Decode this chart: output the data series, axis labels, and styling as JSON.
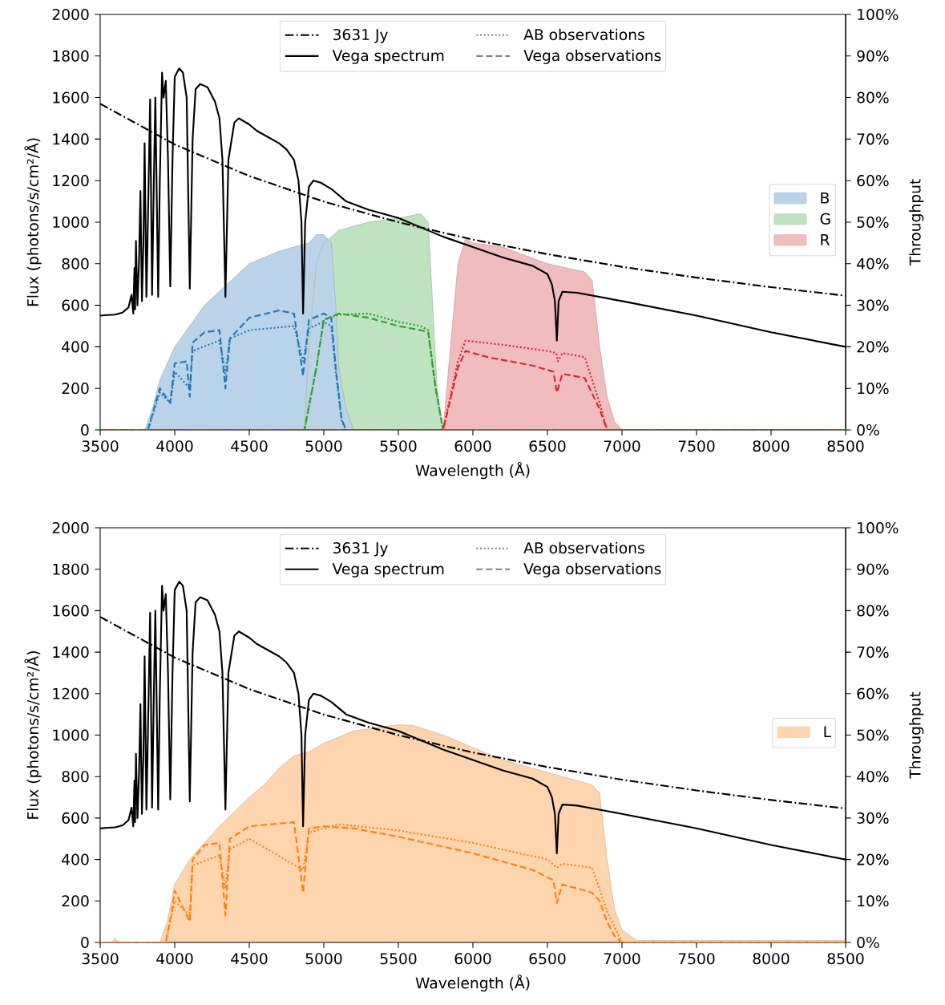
{
  "chart_data": [
    {
      "type": "line",
      "xlabel": "Wavelength (Å)",
      "ylabel": "Flux (photons/s/cm²/Å)",
      "y2label": "Throughput",
      "xlim": [
        3500,
        8500
      ],
      "xticks": [
        3500,
        4000,
        4500,
        5000,
        5500,
        6000,
        6500,
        7000,
        7500,
        8000,
        8500
      ],
      "ylim": [
        0,
        2000
      ],
      "yticks": [
        0,
        200,
        400,
        600,
        800,
        1000,
        1200,
        1400,
        1600,
        1800,
        2000
      ],
      "y2lim": [
        0,
        100
      ],
      "y2ticks": [
        {
          "value": 0,
          "label": "0%"
        },
        {
          "value": 10,
          "label": "10%"
        },
        {
          "value": 20,
          "label": "20%"
        },
        {
          "value": 30,
          "label": "30%"
        },
        {
          "value": 40,
          "label": "40%"
        },
        {
          "value": 50,
          "label": "50%"
        },
        {
          "value": 60,
          "label": "60%"
        },
        {
          "value": 70,
          "label": "70%"
        },
        {
          "value": 80,
          "label": "80%"
        },
        {
          "value": 90,
          "label": "90%"
        },
        {
          "value": 100,
          "label": "100%"
        }
      ],
      "legend": "top",
      "series": [
        {
          "name": "R",
          "type": "area",
          "axis": "y2",
          "color": "#f0bcbd",
          "x": [
            5800,
            5850,
            5900,
            5950,
            6000,
            6200,
            6500,
            6750,
            6800,
            6850,
            6900,
            6950,
            7000
          ],
          "values": [
            0,
            20,
            40,
            46,
            45,
            44,
            40,
            38,
            36,
            20,
            8,
            2,
            0
          ]
        },
        {
          "name": "G",
          "type": "area",
          "axis": "y2",
          "color": "#bfe2bf",
          "x": [
            4870,
            4900,
            4950,
            5000,
            5100,
            5300,
            5500,
            5650,
            5700,
            5730,
            5760,
            5800
          ],
          "values": [
            0,
            20,
            40,
            45,
            48,
            50,
            51,
            52,
            50,
            30,
            10,
            0
          ]
        },
        {
          "name": "B",
          "type": "area",
          "axis": "y2",
          "color": "#bad3e8",
          "x": [
            3800,
            3850,
            3900,
            4000,
            4200,
            4500,
            4700,
            4800,
            4900,
            4950,
            5000,
            5050,
            5080,
            5100,
            5150,
            5200
          ],
          "values": [
            0,
            5,
            12,
            20,
            30,
            40,
            43,
            44,
            45,
            47,
            47,
            45,
            30,
            15,
            5,
            0
          ]
        },
        {
          "name": "3631 Jy",
          "line_style": "dashdot",
          "color": "#000000",
          "x": [
            3500,
            4000,
            4500,
            5000,
            5500,
            6000,
            6500,
            7000,
            7500,
            8000,
            8500
          ],
          "values": [
            1570,
            1374,
            1222,
            1099,
            1000,
            916,
            846,
            785,
            733,
            687,
            646
          ]
        },
        {
          "name": "Vega spectrum",
          "line_style": "solid",
          "color": "#000000",
          "x": [
            3500,
            3550,
            3600,
            3650,
            3690,
            3710,
            3722,
            3730,
            3734,
            3740,
            3750,
            3760,
            3770,
            3780,
            3790,
            3798,
            3810,
            3820,
            3835,
            3848,
            3860,
            3870,
            3889,
            3900,
            3915,
            3925,
            3940,
            3955,
            3970,
            3985,
            4000,
            4030,
            4055,
            4080,
            4101,
            4120,
            4140,
            4170,
            4220,
            4270,
            4300,
            4320,
            4340,
            4360,
            4400,
            4430,
            4500,
            4550,
            4600,
            4700,
            4750,
            4800,
            4830,
            4850,
            4861,
            4875,
            4900,
            4930,
            4980,
            5050,
            5150,
            5300,
            5500,
            5800,
            6000,
            6200,
            6400,
            6500,
            6530,
            6550,
            6563,
            6575,
            6600,
            6700,
            7000,
            7500,
            8000,
            8500
          ],
          "values": [
            550,
            553,
            555,
            565,
            590,
            650,
            560,
            780,
            580,
            910,
            600,
            800,
            1150,
            620,
            900,
            1380,
            640,
            1000,
            1590,
            650,
            1200,
            1600,
            640,
            1200,
            1720,
            1600,
            1680,
            1300,
            690,
            1300,
            1700,
            1740,
            1720,
            1600,
            680,
            1400,
            1640,
            1665,
            1650,
            1580,
            1500,
            1300,
            640,
            1300,
            1480,
            1500,
            1470,
            1440,
            1420,
            1380,
            1350,
            1300,
            1200,
            1000,
            560,
            1000,
            1170,
            1200,
            1190,
            1160,
            1100,
            1060,
            1020,
            930,
            880,
            830,
            790,
            750,
            700,
            620,
            430,
            620,
            665,
            660,
            620,
            550,
            470,
            400
          ]
        },
        {
          "name": "AB observations",
          "line_style": "dotted",
          "color": "#808080"
        },
        {
          "name": "Vega observations",
          "line_style": "dashed",
          "color": "#808080"
        },
        {
          "line_style": "dotted",
          "color": "#1f77b4",
          "x": [
            3500,
            3820,
            3900,
            3970,
            4000,
            4101,
            4120,
            4300,
            4340,
            4370,
            4500,
            4800,
            4861,
            4900,
            5000,
            5050,
            5080,
            5120,
            5150,
            8500
          ],
          "values": [
            0,
            0,
            180,
            130,
            280,
            200,
            380,
            430,
            270,
            440,
            480,
            500,
            330,
            490,
            520,
            500,
            280,
            40,
            0,
            0
          ]
        },
        {
          "line_style": "dashed",
          "color": "#1f77b4",
          "x": [
            3500,
            3820,
            3900,
            3970,
            4000,
            4080,
            4101,
            4120,
            4200,
            4300,
            4340,
            4370,
            4500,
            4700,
            4800,
            4861,
            4900,
            5000,
            5050,
            5080,
            5120,
            5150,
            8500
          ],
          "values": [
            0,
            0,
            200,
            130,
            320,
            330,
            160,
            420,
            470,
            480,
            200,
            440,
            540,
            575,
            560,
            260,
            530,
            560,
            540,
            300,
            50,
            0,
            0
          ]
        },
        {
          "line_style": "dotted",
          "color": "#2ca02c",
          "x": [
            3500,
            4870,
            4950,
            5000,
            5100,
            5300,
            5500,
            5650,
            5700,
            5750,
            5800,
            8500
          ],
          "values": [
            0,
            0,
            300,
            530,
            555,
            560,
            520,
            500,
            480,
            200,
            0,
            0
          ]
        },
        {
          "line_style": "dashed",
          "color": "#2ca02c",
          "x": [
            3500,
            4870,
            4950,
            5000,
            5100,
            5300,
            5500,
            5650,
            5700,
            5750,
            5800,
            8500
          ],
          "values": [
            0,
            0,
            300,
            530,
            560,
            540,
            500,
            480,
            470,
            200,
            0,
            0
          ]
        },
        {
          "line_style": "dotted",
          "color": "#d62728",
          "x": [
            3500,
            5800,
            5900,
            5950,
            6200,
            6500,
            6560,
            6570,
            6600,
            6750,
            6850,
            6900,
            8500
          ],
          "values": [
            0,
            0,
            330,
            430,
            410,
            380,
            370,
            330,
            370,
            350,
            130,
            0,
            0
          ]
        },
        {
          "line_style": "dashed",
          "color": "#d62728",
          "x": [
            3500,
            5800,
            5900,
            5950,
            6100,
            6400,
            6540,
            6563,
            6600,
            6750,
            6850,
            6900,
            8500
          ],
          "values": [
            0,
            0,
            300,
            380,
            350,
            310,
            280,
            180,
            270,
            250,
            100,
            0,
            0
          ]
        }
      ]
    },
    {
      "type": "line",
      "xlabel": "Wavelength (Å)",
      "ylabel": "Flux (photons/s/cm²/Å)",
      "y2label": "Throughput",
      "xlim": [
        3500,
        8500
      ],
      "xticks": [
        3500,
        4000,
        4500,
        5000,
        5500,
        6000,
        6500,
        7000,
        7500,
        8000,
        8500
      ],
      "ylim": [
        0,
        2000
      ],
      "yticks": [
        0,
        200,
        400,
        600,
        800,
        1000,
        1200,
        1400,
        1600,
        1800,
        2000
      ],
      "y2lim": [
        0,
        100
      ],
      "y2ticks": [
        {
          "value": 0,
          "label": "0%"
        },
        {
          "value": 10,
          "label": "10%"
        },
        {
          "value": 20,
          "label": "20%"
        },
        {
          "value": 30,
          "label": "30%"
        },
        {
          "value": 40,
          "label": "40%"
        },
        {
          "value": 50,
          "label": "50%"
        },
        {
          "value": 60,
          "label": "60%"
        },
        {
          "value": 70,
          "label": "70%"
        },
        {
          "value": 80,
          "label": "80%"
        },
        {
          "value": 90,
          "label": "90%"
        },
        {
          "value": 100,
          "label": "100%"
        }
      ],
      "legend": "top",
      "series": [
        {
          "name": "L",
          "type": "area",
          "axis": "y2",
          "color": "#ffd5b0",
          "x": [
            3500,
            3580,
            3600,
            3620,
            3660,
            3900,
            3950,
            4000,
            4100,
            4200,
            4300,
            4500,
            4600,
            4700,
            4800,
            4900,
            5000,
            5200,
            5500,
            5600,
            5800,
            6000,
            6200,
            6400,
            6600,
            6800,
            6850,
            6900,
            6950,
            7000,
            7100,
            8500
          ],
          "values": [
            0,
            0,
            1,
            0,
            0,
            0,
            5,
            14,
            20,
            24,
            28,
            35,
            38,
            42,
            45,
            46,
            48,
            51,
            52.5,
            52.3,
            50,
            47,
            44,
            42,
            40,
            38,
            36,
            20,
            8,
            3,
            0.5,
            0.5
          ]
        },
        {
          "name": "3631 Jy",
          "line_style": "dashdot",
          "color": "#000000",
          "x": [
            3500,
            4000,
            4500,
            5000,
            5500,
            6000,
            6500,
            7000,
            7500,
            8000,
            8500
          ],
          "values": [
            1570,
            1374,
            1222,
            1099,
            1000,
            916,
            846,
            785,
            733,
            687,
            646
          ]
        },
        {
          "name": "Vega spectrum",
          "line_style": "solid",
          "color": "#000000",
          "x": [
            3500,
            3550,
            3600,
            3650,
            3690,
            3710,
            3722,
            3730,
            3734,
            3740,
            3750,
            3760,
            3770,
            3780,
            3790,
            3798,
            3810,
            3820,
            3835,
            3848,
            3860,
            3870,
            3889,
            3900,
            3915,
            3925,
            3940,
            3955,
            3970,
            3985,
            4000,
            4030,
            4055,
            4080,
            4101,
            4120,
            4140,
            4170,
            4220,
            4270,
            4300,
            4320,
            4340,
            4360,
            4400,
            4430,
            4500,
            4550,
            4600,
            4700,
            4750,
            4800,
            4830,
            4850,
            4861,
            4875,
            4900,
            4930,
            4980,
            5050,
            5150,
            5300,
            5500,
            5800,
            6000,
            6200,
            6400,
            6500,
            6530,
            6550,
            6563,
            6575,
            6600,
            6700,
            7000,
            7500,
            8000,
            8500
          ],
          "values": [
            550,
            553,
            555,
            565,
            590,
            650,
            560,
            780,
            580,
            910,
            600,
            800,
            1150,
            620,
            900,
            1380,
            640,
            1000,
            1590,
            650,
            1200,
            1600,
            640,
            1200,
            1720,
            1600,
            1680,
            1300,
            690,
            1300,
            1700,
            1740,
            1720,
            1600,
            680,
            1400,
            1640,
            1665,
            1650,
            1580,
            1500,
            1300,
            640,
            1300,
            1480,
            1500,
            1470,
            1440,
            1420,
            1380,
            1350,
            1300,
            1200,
            1000,
            560,
            1000,
            1170,
            1200,
            1190,
            1160,
            1100,
            1060,
            1020,
            930,
            880,
            830,
            790,
            750,
            700,
            620,
            430,
            620,
            665,
            660,
            620,
            550,
            470,
            400
          ]
        },
        {
          "name": "AB observations",
          "line_style": "dotted",
          "color": "#808080"
        },
        {
          "name": "Vega observations",
          "line_style": "dashed",
          "color": "#808080"
        },
        {
          "line_style": "dotted",
          "color": "#ff7f0e",
          "x": [
            3500,
            3940,
            4000,
            4101,
            4120,
            4300,
            4340,
            4370,
            4500,
            4861,
            4900,
            5100,
            5500,
            6000,
            6500,
            6563,
            6600,
            6800,
            6900,
            7000,
            8500
          ],
          "values": [
            0,
            0,
            200,
            130,
            370,
            420,
            260,
            450,
            500,
            350,
            530,
            570,
            540,
            480,
            400,
            360,
            380,
            360,
            150,
            0,
            0
          ]
        },
        {
          "line_style": "dashed",
          "color": "#ff7f0e",
          "x": [
            3500,
            3940,
            3980,
            4000,
            4101,
            4120,
            4200,
            4300,
            4340,
            4370,
            4500,
            4800,
            4861,
            4900,
            5000,
            5200,
            5500,
            6000,
            6400,
            6540,
            6563,
            6600,
            6800,
            6850,
            6900,
            6950,
            7000,
            8500
          ],
          "values": [
            0,
            0,
            150,
            250,
            100,
            400,
            470,
            480,
            130,
            500,
            560,
            580,
            240,
            550,
            560,
            550,
            510,
            430,
            350,
            300,
            190,
            280,
            240,
            200,
            100,
            30,
            0,
            0
          ]
        }
      ]
    }
  ]
}
